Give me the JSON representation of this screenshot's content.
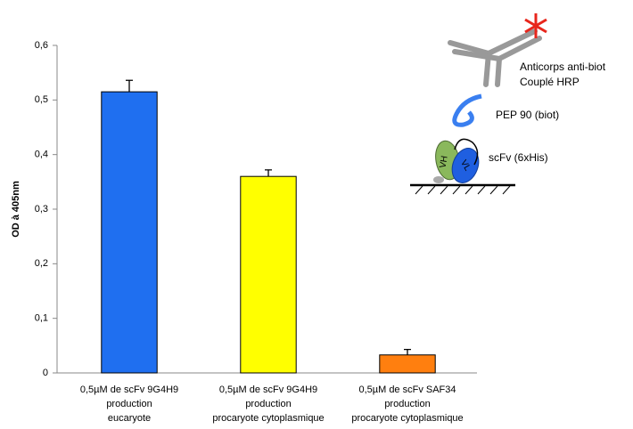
{
  "chart_data": {
    "type": "bar",
    "y_label": "OD à 405nm",
    "categories": [
      [
        "0,5µM de scFv 9G4H9",
        "production",
        "eucaryote"
      ],
      [
        "0,5µM de scFv 9G4H9",
        "production",
        "procaryote cytoplasmique"
      ],
      [
        "0,5µM de scFv SAF34",
        "production",
        "procaryote cytoplasmique"
      ]
    ],
    "values": [
      0.515,
      0.36,
      0.033
    ],
    "errors": [
      0.021,
      0.012,
      0.01
    ],
    "colors": [
      "#1f6ff0",
      "#ffff00",
      "#ff7f0f"
    ],
    "ylim": [
      0,
      0.6
    ],
    "yticks": [
      0,
      {
        "value": 0.1,
        "label": "0,1"
      },
      {
        "value": 0.2,
        "label": "0,2"
      },
      {
        "value": 0.3,
        "label": "0,3"
      },
      {
        "value": 0.4,
        "label": "0,4"
      },
      {
        "value": 0.5,
        "label": "0,5"
      },
      {
        "value": 0.6,
        "label": "0,6"
      }
    ],
    "annotations": {
      "antibody": [
        "Anticorps anti-biot",
        "Couplé HRP"
      ],
      "peptide": "PEP 90 (biot)",
      "scfv": "scFv (6xHis)",
      "vh": "VH",
      "vl": "VL"
    }
  }
}
